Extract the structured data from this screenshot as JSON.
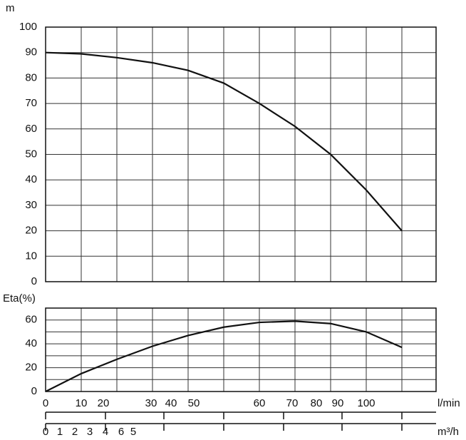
{
  "chart_data": [
    {
      "type": "line",
      "ylabel": "m",
      "xlim": [
        0,
        10.96
      ],
      "xgrid": [
        0,
        1,
        2,
        3,
        4,
        5,
        6,
        7,
        8,
        9,
        10
      ],
      "ylim": [
        0,
        100
      ],
      "yticks": [
        0,
        10,
        20,
        30,
        40,
        50,
        60,
        70,
        80,
        90,
        100
      ],
      "ygrid": [
        0,
        10,
        20,
        30,
        40,
        50,
        60,
        70,
        80,
        90,
        100
      ],
      "x": [
        0,
        1,
        2,
        3,
        4,
        5,
        6,
        7,
        8,
        9,
        10
      ],
      "series": [
        {
          "color": "#111111",
          "values": [
            90,
            89.5,
            88,
            86,
            83,
            78,
            70,
            61,
            50,
            36,
            20
          ]
        }
      ]
    },
    {
      "type": "line",
      "ylabel": "Eta(%)",
      "xlim": [
        0,
        10.96
      ],
      "xgrid": [
        0,
        1,
        2,
        3,
        4,
        5,
        6,
        7,
        8,
        9,
        10
      ],
      "ylim": [
        0,
        70
      ],
      "yticks": [
        0,
        20,
        40,
        60
      ],
      "ygrid": [
        0,
        10,
        20,
        30,
        40,
        50,
        60,
        70
      ],
      "x": [
        0,
        1,
        2,
        3,
        4,
        5,
        6,
        7,
        8,
        9,
        10
      ],
      "series": [
        {
          "color": "#111111",
          "values": [
            0,
            15,
            27,
            38,
            47,
            54,
            58,
            59,
            57,
            50,
            37
          ]
        }
      ],
      "xaxes": [
        {
          "label": "l/min",
          "tick_positions": [
            0,
            1.68,
            3.32,
            5,
            6.68,
            8.32,
            10
          ],
          "ticks": [
            {
              "value": 0,
              "label": "0"
            },
            {
              "value": 1.0,
              "label": "10"
            },
            {
              "value": 1.62,
              "label": "20"
            },
            {
              "value": 2.96,
              "label": "30"
            },
            {
              "value": 3.52,
              "label": "40"
            },
            {
              "value": 4.16,
              "label": "50"
            },
            {
              "value": 6.0,
              "label": "60"
            },
            {
              "value": 6.92,
              "label": "70"
            },
            {
              "value": 7.6,
              "label": "80"
            },
            {
              "value": 8.2,
              "label": "90"
            },
            {
              "value": 9.0,
              "label": "100"
            }
          ]
        },
        {
          "label": "m³/h",
          "tick_positions": [
            0,
            1.68,
            3.32,
            5,
            6.68,
            8.32,
            10
          ],
          "ticks": [
            {
              "value": 0,
              "label": "0"
            },
            {
              "value": 0.4,
              "label": "1"
            },
            {
              "value": 0.82,
              "label": "2"
            },
            {
              "value": 1.24,
              "label": "3"
            },
            {
              "value": 1.68,
              "label": "4"
            },
            {
              "value": 2.12,
              "label": "6"
            },
            {
              "value": 2.46,
              "label": "5"
            }
          ]
        }
      ]
    }
  ]
}
